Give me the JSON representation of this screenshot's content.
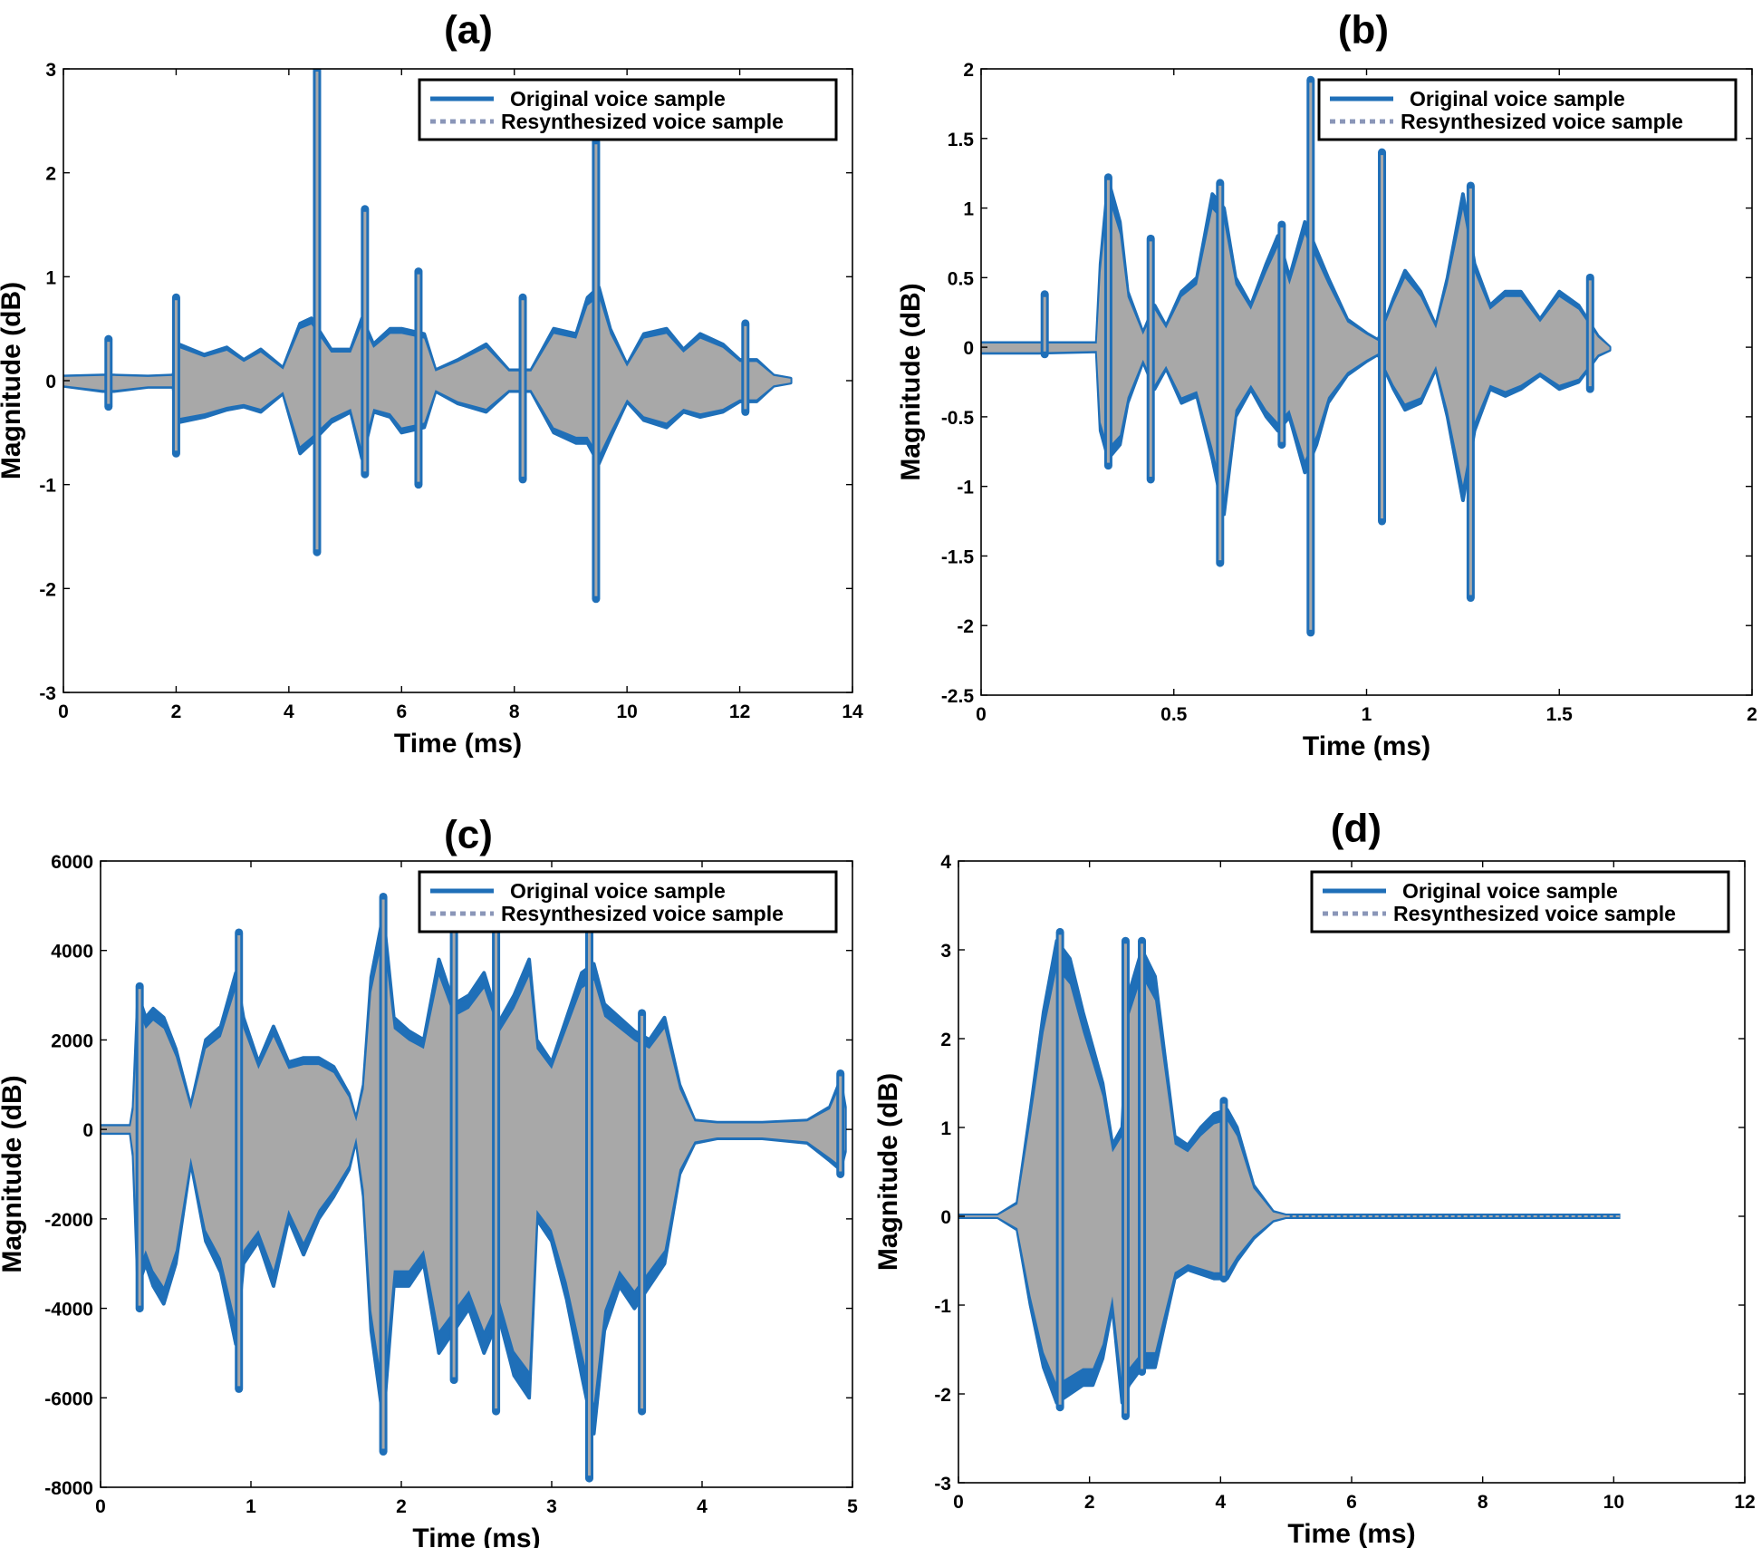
{
  "colors": {
    "original": "#1f6fb8",
    "resynthesized": "#a8a8a8",
    "legend_dash": "#8a96b8",
    "axes": "#000000"
  },
  "chart_data": [
    {
      "id": "a",
      "type": "line",
      "title": "(a)",
      "xlabel": "Time (ms)",
      "ylabel": "Magnitude (dB)",
      "xlim": [
        0,
        14
      ],
      "ylim": [
        -3,
        3
      ],
      "xticks": [
        0,
        2,
        4,
        6,
        8,
        10,
        12,
        14
      ],
      "xtick_labels": [
        "0",
        "2",
        "4",
        "6",
        "8",
        "10",
        "12",
        "14"
      ],
      "yticks": [
        -3,
        -2,
        -1,
        0,
        1,
        2,
        3
      ],
      "ytick_labels": [
        "-3",
        "-2",
        "-1",
        "0",
        "1",
        "2",
        "3"
      ],
      "legend": [
        "Original voice sample",
        "Resynthesized voice sample"
      ],
      "legend_position": "top-right",
      "signal_end": 12.9,
      "flat_tail_end": null,
      "envelope": [
        [
          0,
          0.04,
          -0.05
        ],
        [
          0.7,
          0.05,
          -0.1
        ],
        [
          0.9,
          0.05,
          -0.1
        ],
        [
          1.5,
          0.04,
          -0.06
        ],
        [
          1.95,
          0.05,
          -0.06
        ],
        [
          2.05,
          0.35,
          -0.4
        ],
        [
          2.5,
          0.25,
          -0.35
        ],
        [
          2.9,
          0.32,
          -0.28
        ],
        [
          3.2,
          0.2,
          -0.25
        ],
        [
          3.5,
          0.3,
          -0.3
        ],
        [
          3.9,
          0.12,
          -0.12
        ],
        [
          4.2,
          0.55,
          -0.7
        ],
        [
          4.4,
          0.6,
          -0.6
        ],
        [
          4.75,
          0.3,
          -0.4
        ],
        [
          5.1,
          0.3,
          -0.3
        ],
        [
          5.3,
          0.6,
          -0.75
        ],
        [
          5.5,
          0.35,
          -0.3
        ],
        [
          5.8,
          0.5,
          -0.35
        ],
        [
          6.0,
          0.5,
          -0.5
        ],
        [
          6.4,
          0.45,
          -0.45
        ],
        [
          6.6,
          0.1,
          -0.1
        ],
        [
          7.0,
          0.2,
          -0.22
        ],
        [
          7.5,
          0.35,
          -0.3
        ],
        [
          7.9,
          0.1,
          -0.1
        ],
        [
          8.3,
          0.1,
          -0.1
        ],
        [
          8.7,
          0.5,
          -0.5
        ],
        [
          9.1,
          0.45,
          -0.6
        ],
        [
          9.3,
          0.8,
          -0.6
        ],
        [
          9.5,
          0.9,
          -0.8
        ],
        [
          9.7,
          0.5,
          -0.55
        ],
        [
          10.0,
          0.15,
          -0.2
        ],
        [
          10.3,
          0.45,
          -0.38
        ],
        [
          10.7,
          0.5,
          -0.45
        ],
        [
          11.0,
          0.3,
          -0.3
        ],
        [
          11.3,
          0.45,
          -0.35
        ],
        [
          11.7,
          0.35,
          -0.3
        ],
        [
          12.0,
          0.2,
          -0.2
        ],
        [
          12.3,
          0.2,
          -0.2
        ],
        [
          12.6,
          0.05,
          -0.05
        ],
        [
          12.9,
          0.02,
          -0.02
        ]
      ],
      "spikes": [
        [
          0.8,
          0.4,
          -0.25
        ],
        [
          2.0,
          0.8,
          -0.7
        ],
        [
          4.5,
          3.0,
          -1.65
        ],
        [
          5.35,
          1.65,
          -0.9
        ],
        [
          6.3,
          1.05,
          -1.0
        ],
        [
          8.15,
          0.8,
          -0.95
        ],
        [
          9.45,
          2.3,
          -2.1
        ],
        [
          12.1,
          0.55,
          -0.3
        ]
      ]
    },
    {
      "id": "b",
      "type": "line",
      "title": "(b)",
      "xlabel": "Time (ms)",
      "ylabel": "Magnitude (dB)",
      "xlim": [
        0,
        2
      ],
      "ylim": [
        -2.5,
        2
      ],
      "xticks": [
        0,
        0.5,
        1,
        1.5,
        2
      ],
      "xtick_labels": [
        "0",
        "0.5",
        "1",
        "1.5",
        "2"
      ],
      "yticks": [
        -2.5,
        -2,
        -1.5,
        -1,
        -0.5,
        0,
        0.5,
        1,
        1.5,
        2
      ],
      "ytick_labels": [
        "-2.5",
        "-2",
        "-1.5",
        "-1",
        "-0.5",
        "0",
        "0.5",
        "1",
        "1.5",
        "2"
      ],
      "legend": [
        "Original voice sample",
        "Resynthesized voice sample"
      ],
      "legend_position": "top-right",
      "signal_end": 1.63,
      "flat_tail_end": null,
      "envelope": [
        [
          0,
          0.03,
          -0.04
        ],
        [
          0.15,
          0.03,
          -0.04
        ],
        [
          0.3,
          0.03,
          -0.03
        ],
        [
          0.31,
          0.6,
          -0.6
        ],
        [
          0.33,
          1.2,
          -0.8
        ],
        [
          0.36,
          0.9,
          -0.7
        ],
        [
          0.38,
          0.4,
          -0.4
        ],
        [
          0.42,
          0.1,
          -0.1
        ],
        [
          0.45,
          0.3,
          -0.3
        ],
        [
          0.48,
          0.15,
          -0.15
        ],
        [
          0.52,
          0.4,
          -0.4
        ],
        [
          0.56,
          0.5,
          -0.35
        ],
        [
          0.6,
          1.1,
          -0.8
        ],
        [
          0.63,
          1.0,
          -1.2
        ],
        [
          0.66,
          0.5,
          -0.5
        ],
        [
          0.7,
          0.3,
          -0.3
        ],
        [
          0.74,
          0.6,
          -0.5
        ],
        [
          0.77,
          0.8,
          -0.6
        ],
        [
          0.8,
          0.5,
          -0.5
        ],
        [
          0.84,
          0.9,
          -0.9
        ],
        [
          0.87,
          0.7,
          -0.7
        ],
        [
          0.9,
          0.5,
          -0.4
        ],
        [
          0.95,
          0.2,
          -0.2
        ],
        [
          1.0,
          0.1,
          -0.1
        ],
        [
          1.03,
          0.05,
          -0.05
        ],
        [
          1.07,
          0.35,
          -0.3
        ],
        [
          1.1,
          0.55,
          -0.45
        ],
        [
          1.14,
          0.4,
          -0.4
        ],
        [
          1.18,
          0.15,
          -0.15
        ],
        [
          1.21,
          0.5,
          -0.5
        ],
        [
          1.25,
          1.1,
          -1.1
        ],
        [
          1.28,
          0.6,
          -0.6
        ],
        [
          1.32,
          0.3,
          -0.3
        ],
        [
          1.36,
          0.4,
          -0.35
        ],
        [
          1.4,
          0.4,
          -0.3
        ],
        [
          1.45,
          0.2,
          -0.2
        ],
        [
          1.5,
          0.4,
          -0.3
        ],
        [
          1.55,
          0.3,
          -0.25
        ],
        [
          1.6,
          0.08,
          -0.06
        ],
        [
          1.63,
          0.0,
          -0.02
        ]
      ],
      "spikes": [
        [
          0.165,
          0.38,
          -0.05
        ],
        [
          0.33,
          1.22,
          -0.85
        ],
        [
          0.44,
          0.78,
          -0.95
        ],
        [
          0.62,
          1.18,
          -1.55
        ],
        [
          0.78,
          0.88,
          -0.7
        ],
        [
          0.855,
          1.92,
          -2.05
        ],
        [
          1.04,
          1.4,
          -1.25
        ],
        [
          1.27,
          1.16,
          -1.8
        ],
        [
          1.58,
          0.5,
          -0.3
        ]
      ]
    },
    {
      "id": "c",
      "type": "line",
      "title": "(c)",
      "xlabel": "Time (ms)",
      "ylabel": "Magnitude (dB)",
      "xlim": [
        0,
        5
      ],
      "ylim": [
        -8000,
        6000
      ],
      "xticks": [
        0,
        1,
        2,
        3,
        4,
        5
      ],
      "xtick_labels": [
        "0",
        "1",
        "2",
        "3",
        "4",
        "5"
      ],
      "yticks": [
        -8000,
        -6000,
        -4000,
        -2000,
        0,
        2000,
        4000,
        6000
      ],
      "ytick_labels": [
        "-8000",
        "-6000",
        "-4000",
        "-2000",
        "0",
        "2000",
        "4000",
        "6000"
      ],
      "legend": [
        "Original voice sample",
        "Resynthesized voice sample"
      ],
      "legend_position": "top-right",
      "signal_end": 4.95,
      "flat_tail_end": null,
      "envelope": [
        [
          0,
          80,
          -80
        ],
        [
          0.2,
          80,
          -80
        ],
        [
          0.22,
          500,
          -600
        ],
        [
          0.25,
          3000,
          -3500
        ],
        [
          0.3,
          2500,
          -3000
        ],
        [
          0.35,
          2700,
          -3500
        ],
        [
          0.42,
          2500,
          -3900
        ],
        [
          0.5,
          1800,
          -3000
        ],
        [
          0.6,
          500,
          -700
        ],
        [
          0.7,
          2000,
          -2500
        ],
        [
          0.8,
          2300,
          -3200
        ],
        [
          0.9,
          3500,
          -4800
        ],
        [
          0.95,
          2500,
          -3000
        ],
        [
          1.05,
          1500,
          -2500
        ],
        [
          1.15,
          2300,
          -3500
        ],
        [
          1.25,
          1500,
          -2000
        ],
        [
          1.35,
          1600,
          -2800
        ],
        [
          1.45,
          1600,
          -2000
        ],
        [
          1.55,
          1400,
          -1500
        ],
        [
          1.65,
          800,
          -900
        ],
        [
          1.7,
          200,
          -200
        ],
        [
          1.75,
          1000,
          -1500
        ],
        [
          1.8,
          3400,
          -4500
        ],
        [
          1.88,
          4800,
          -6500
        ],
        [
          1.95,
          2500,
          -3500
        ],
        [
          2.05,
          2200,
          -3500
        ],
        [
          2.15,
          2000,
          -3000
        ],
        [
          2.25,
          3800,
          -5000
        ],
        [
          2.35,
          2800,
          -4500
        ],
        [
          2.45,
          3000,
          -4000
        ],
        [
          2.55,
          3500,
          -5000
        ],
        [
          2.65,
          2400,
          -4200
        ],
        [
          2.75,
          3000,
          -5500
        ],
        [
          2.85,
          3800,
          -6000
        ],
        [
          2.9,
          2000,
          -2000
        ],
        [
          3.0,
          1500,
          -2500
        ],
        [
          3.1,
          2500,
          -3800
        ],
        [
          3.2,
          3500,
          -5500
        ],
        [
          3.28,
          3700,
          -6800
        ],
        [
          3.35,
          2800,
          -4500
        ],
        [
          3.45,
          2500,
          -3500
        ],
        [
          3.55,
          2200,
          -4000
        ],
        [
          3.65,
          2000,
          -3500
        ],
        [
          3.75,
          2500,
          -3000
        ],
        [
          3.85,
          1000,
          -1000
        ],
        [
          3.95,
          200,
          -300
        ],
        [
          4.1,
          150,
          -200
        ],
        [
          4.4,
          150,
          -200
        ],
        [
          4.7,
          200,
          -300
        ],
        [
          4.85,
          500,
          -700
        ],
        [
          4.92,
          1100,
          -900
        ],
        [
          4.95,
          500,
          -500
        ]
      ],
      "spikes": [
        [
          0.26,
          3200,
          -4000
        ],
        [
          0.92,
          4400,
          -5800
        ],
        [
          1.88,
          5200,
          -7200
        ],
        [
          2.35,
          4600,
          -5600
        ],
        [
          2.63,
          4500,
          -6300
        ],
        [
          3.25,
          4500,
          -7800
        ],
        [
          3.6,
          2600,
          -6300
        ],
        [
          4.92,
          1250,
          -1000
        ]
      ]
    },
    {
      "id": "d",
      "type": "line",
      "title": "(d)",
      "xlabel": "Time (ms)",
      "ylabel": "Magnitude (dB)",
      "xlim": [
        0,
        12
      ],
      "ylim": [
        -3,
        4
      ],
      "xticks": [
        0,
        2,
        4,
        6,
        8,
        10,
        12
      ],
      "xtick_labels": [
        "0",
        "2",
        "4",
        "6",
        "8",
        "10",
        "12"
      ],
      "yticks": [
        -3,
        -2,
        -1,
        0,
        1,
        2,
        3,
        4
      ],
      "ytick_labels": [
        "-3",
        "-2",
        "-1",
        "0",
        "1",
        "2",
        "3",
        "4"
      ],
      "legend": [
        "Original voice sample",
        "Resynthesized voice sample"
      ],
      "legend_position": "top-right",
      "signal_end": 5.0,
      "flat_tail_end": 10.1,
      "envelope": [
        [
          0,
          0.01,
          -0.01
        ],
        [
          0.6,
          0.01,
          -0.01
        ],
        [
          0.9,
          0.15,
          -0.15
        ],
        [
          1.1,
          1.2,
          -1.0
        ],
        [
          1.3,
          2.3,
          -1.7
        ],
        [
          1.5,
          3.1,
          -2.1
        ],
        [
          1.7,
          2.9,
          -2.0
        ],
        [
          1.9,
          2.3,
          -1.9
        ],
        [
          2.05,
          1.9,
          -1.9
        ],
        [
          2.2,
          1.5,
          -1.6
        ],
        [
          2.35,
          0.8,
          -1.0
        ],
        [
          2.5,
          1.0,
          -2.1
        ],
        [
          2.6,
          2.5,
          -1.9
        ],
        [
          2.8,
          3.0,
          -1.7
        ],
        [
          3.0,
          2.7,
          -1.7
        ],
        [
          3.15,
          1.8,
          -1.2
        ],
        [
          3.3,
          0.9,
          -0.7
        ],
        [
          3.5,
          0.8,
          -0.6
        ],
        [
          3.7,
          1.0,
          -0.65
        ],
        [
          3.9,
          1.15,
          -0.7
        ],
        [
          4.1,
          1.2,
          -0.7
        ],
        [
          4.25,
          1.0,
          -0.5
        ],
        [
          4.5,
          0.35,
          -0.25
        ],
        [
          4.8,
          0.05,
          -0.05
        ],
        [
          5.0,
          0.01,
          -0.01
        ]
      ],
      "spikes": [
        [
          1.55,
          3.2,
          -2.15
        ],
        [
          2.55,
          3.1,
          -2.25
        ],
        [
          2.8,
          3.1,
          -1.75
        ],
        [
          4.05,
          1.3,
          -0.7
        ]
      ]
    }
  ]
}
